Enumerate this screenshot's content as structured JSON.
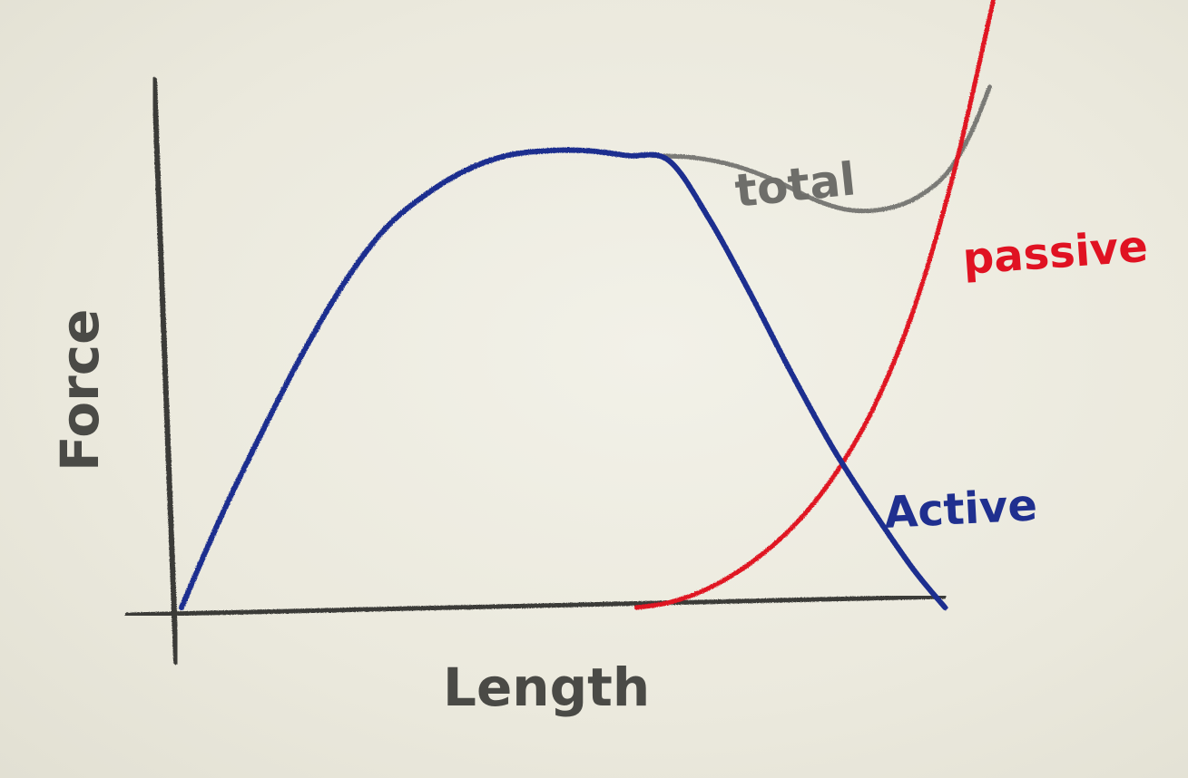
{
  "chart_data": {
    "type": "line",
    "title": "",
    "xlabel": "Length",
    "ylabel": "Force",
    "xlim": [
      0,
      10
    ],
    "ylim": [
      0,
      6
    ],
    "grid": false,
    "legend": "none",
    "series": [
      {
        "name": "Active",
        "color": "#1f2f8f",
        "x": [
          0,
          0.5,
          1,
          1.5,
          2,
          2.5,
          3,
          3.5,
          4,
          4.5,
          5,
          5.5,
          6,
          6.5,
          7,
          7.5,
          8,
          8.5,
          9,
          9.4
        ],
        "y": [
          0,
          0.95,
          1.8,
          2.6,
          3.3,
          3.85,
          4.2,
          4.45,
          4.6,
          4.65,
          4.65,
          4.6,
          4.55,
          3.95,
          3.2,
          2.4,
          1.65,
          1.0,
          0.4,
          0
        ]
      },
      {
        "name": "passive",
        "color": "#e01222",
        "x": [
          5.6,
          6,
          6.5,
          7,
          7.5,
          8,
          8.5,
          9,
          9.5,
          10
        ],
        "y": [
          0,
          0.05,
          0.2,
          0.45,
          0.8,
          1.3,
          2.0,
          3.0,
          4.4,
          6.2
        ]
      },
      {
        "name": "total",
        "color": "#7a7a76",
        "x": [
          5.8,
          6.3,
          6.8,
          7.3,
          7.8,
          8.2,
          8.6,
          9.0,
          9.4,
          9.7,
          9.95
        ],
        "y": [
          4.6,
          4.58,
          4.5,
          4.35,
          4.15,
          4.05,
          4.05,
          4.15,
          4.4,
          4.8,
          5.3
        ]
      }
    ],
    "annotations": [
      "total",
      "passive",
      "Active"
    ]
  }
}
